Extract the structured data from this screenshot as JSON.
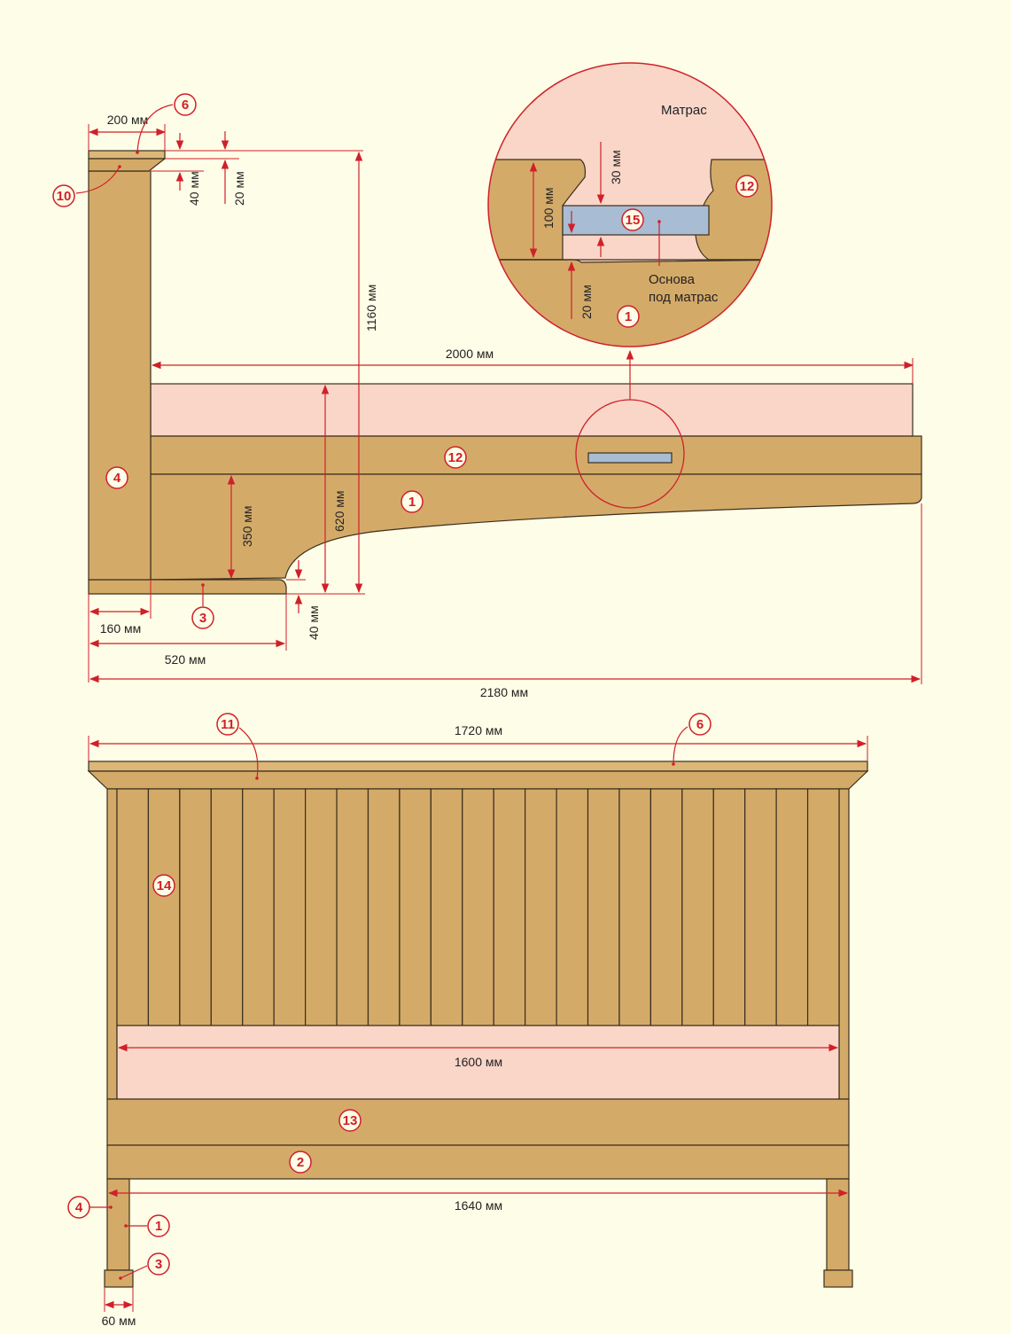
{
  "side_view": {
    "dims": {
      "top_cap_width": "200 мм",
      "cap_thickness": "40 мм",
      "cap_offset": "20 мм",
      "total_height": "1160 мм",
      "length_inner": "2000 мм",
      "leg_height": "350 мм",
      "mattress_height": "620 мм",
      "foot_offset": "40 мм",
      "post_width": "160 мм",
      "foot_length": "520 мм",
      "total_length": "2180 мм"
    },
    "callouts": [
      "6",
      "10",
      "4",
      "12",
      "1",
      "3"
    ]
  },
  "detail": {
    "mattress_label": "Матрас",
    "base_label_line1": "Основа",
    "base_label_line2": "под матрас",
    "dims": {
      "rail_height": "100 мм",
      "top_gap": "30 мм",
      "bottom_gap": "20 мм"
    },
    "callouts": [
      "12",
      "15",
      "1"
    ]
  },
  "front_view": {
    "dims": {
      "top_width": "1720 мм",
      "mattress_width": "1600 мм",
      "leg_span": "1640 мм",
      "leg_width": "60 мм"
    },
    "callouts": [
      "11",
      "6",
      "14",
      "13",
      "2",
      "4",
      "1",
      "3"
    ]
  },
  "colors": {
    "wood": "#d4aa69",
    "mattress": "#f9d6c8",
    "base": "#a8bcd4",
    "dimension": "#d0202a",
    "background": "#fefde7"
  }
}
